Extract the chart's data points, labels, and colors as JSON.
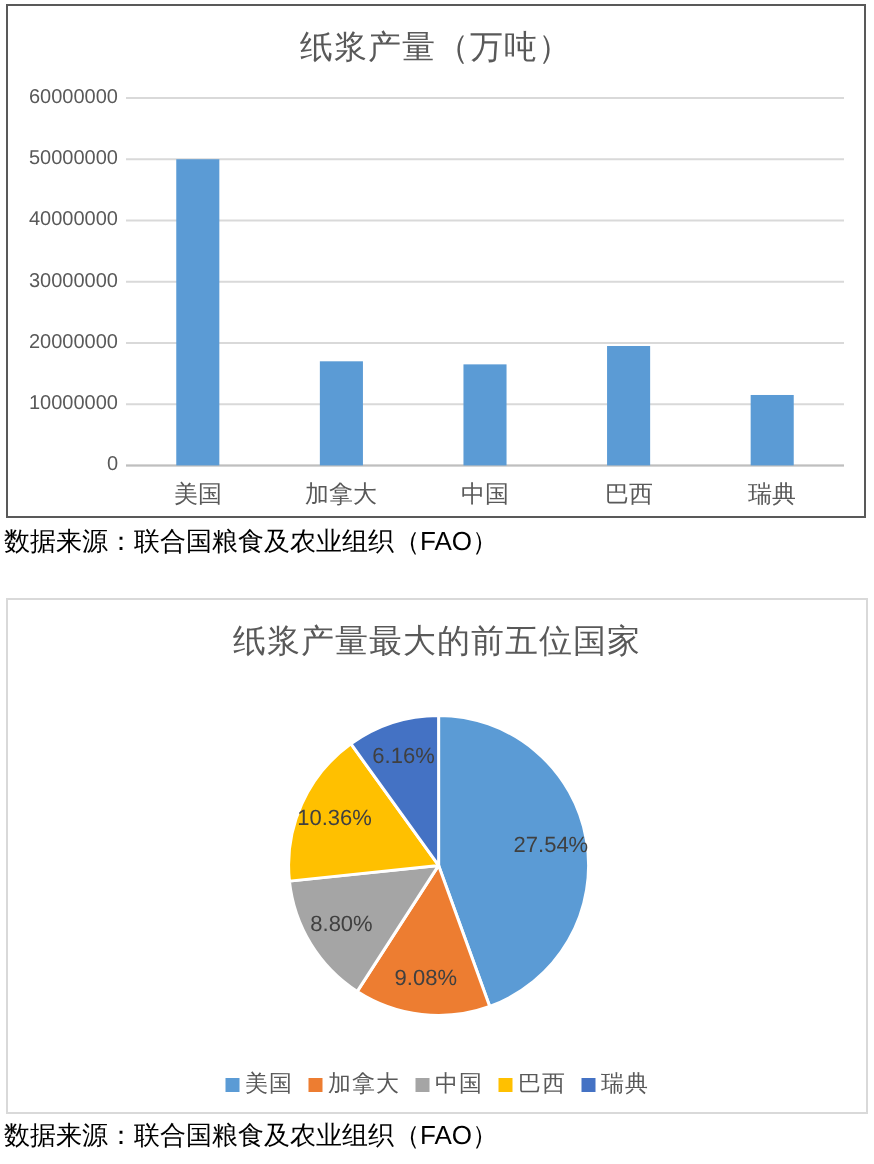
{
  "chart_data": [
    {
      "type": "bar",
      "title": "纸浆产量（万吨）",
      "categories": [
        "美国",
        "加拿大",
        "中国",
        "巴西",
        "瑞典"
      ],
      "values": [
        50000000,
        17000000,
        16500000,
        19500000,
        11500000
      ],
      "color": "#5b9bd5",
      "ylim": [
        0,
        60000000
      ],
      "yticks": [
        0,
        10000000,
        20000000,
        30000000,
        40000000,
        50000000,
        60000000
      ],
      "grid": "y",
      "annotations": [
        "数据来源：联合国粮食及农业组织（FAO）"
      ]
    },
    {
      "type": "pie",
      "title": "纸浆产量最大的前五位国家",
      "categories": [
        "美国",
        "加拿大",
        "中国",
        "巴西",
        "瑞典"
      ],
      "values": [
        27.54,
        9.08,
        8.8,
        10.36,
        6.16
      ],
      "colors": [
        "#5b9bd5",
        "#ed7d31",
        "#a5a5a5",
        "#ffc000",
        "#4472c4"
      ],
      "value_labels": [
        "27.54%",
        "9.08%",
        "8.80%",
        "10.36%",
        "6.16%"
      ],
      "legend": "bottom",
      "annotations": [
        "数据来源：联合国粮食及农业组织（FAO）"
      ]
    }
  ]
}
